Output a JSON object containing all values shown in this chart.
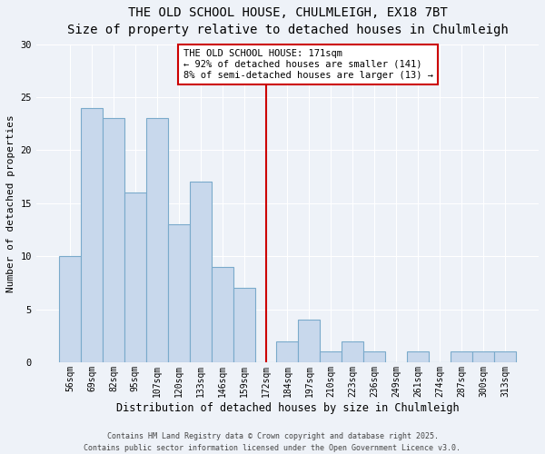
{
  "title": "THE OLD SCHOOL HOUSE, CHULMLEIGH, EX18 7BT",
  "subtitle": "Size of property relative to detached houses in Chulmleigh",
  "xlabel": "Distribution of detached houses by size in Chulmleigh",
  "ylabel": "Number of detached properties",
  "bin_labels": [
    "56sqm",
    "69sqm",
    "82sqm",
    "95sqm",
    "107sqm",
    "120sqm",
    "133sqm",
    "146sqm",
    "159sqm",
    "172sqm",
    "184sqm",
    "197sqm",
    "210sqm",
    "223sqm",
    "236sqm",
    "249sqm",
    "261sqm",
    "274sqm",
    "287sqm",
    "300sqm",
    "313sqm"
  ],
  "values": [
    10,
    24,
    23,
    16,
    23,
    13,
    17,
    9,
    7,
    0,
    2,
    4,
    1,
    2,
    1,
    0,
    1,
    0,
    1,
    1,
    1
  ],
  "bar_color": "#c8d8ec",
  "bar_edge_color": "#7aaacb",
  "background_color": "#eef2f8",
  "grid_color": "#ffffff",
  "vline_color": "#cc0000",
  "vline_x": 9.0,
  "annotation_title": "THE OLD SCHOOL HOUSE: 171sqm",
  "annotation_line1": "← 92% of detached houses are smaller (141)",
  "annotation_line2": "8% of semi-detached houses are larger (13) →",
  "annotation_box_edgecolor": "#cc0000",
  "ylim": [
    0,
    30
  ],
  "yticks": [
    0,
    5,
    10,
    15,
    20,
    25,
    30
  ],
  "footer1": "Contains HM Land Registry data © Crown copyright and database right 2025.",
  "footer2": "Contains public sector information licensed under the Open Government Licence v3.0.",
  "title_fontsize": 10,
  "subtitle_fontsize": 9,
  "xlabel_fontsize": 8.5,
  "ylabel_fontsize": 8,
  "tick_fontsize": 7,
  "annotation_fontsize": 7.5,
  "footer_fontsize": 6
}
